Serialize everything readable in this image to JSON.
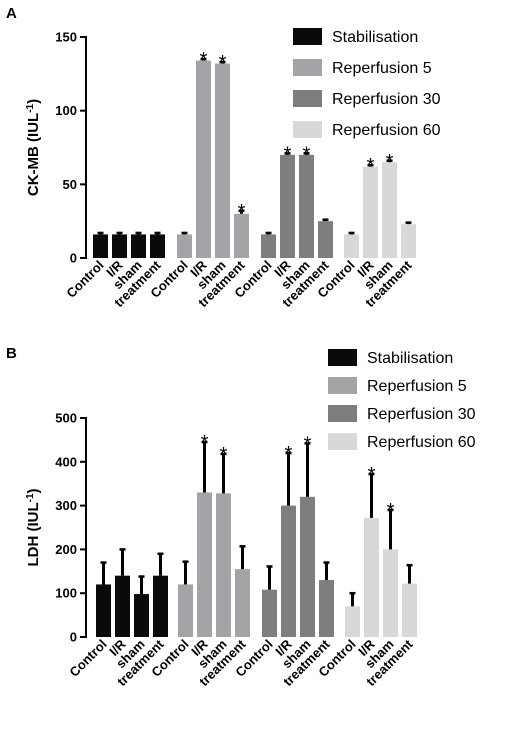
{
  "chart_data": [
    {
      "type": "bar",
      "panel_label": "A",
      "ylabel_main": "CK-MB (IUL",
      "ylabel_sup": "-1",
      "ylabel_end": ")",
      "ylim": [
        0,
        150
      ],
      "yticks": [
        0,
        50,
        100,
        150
      ],
      "categories": [
        "Control",
        "I/R",
        "sham",
        "treatment"
      ],
      "legend_position": "top-right",
      "series": [
        {
          "name": "Stabilisation",
          "color": "#0a0a0a",
          "values": [
            16,
            16,
            16,
            16
          ],
          "errors": [
            1,
            1,
            1,
            1
          ],
          "significant": [
            false,
            false,
            false,
            false
          ]
        },
        {
          "name": "Reperfusion 5",
          "color": "#a4a4a8",
          "values": [
            16,
            134,
            132,
            30
          ],
          "errors": [
            1,
            1,
            1,
            2
          ],
          "significant": [
            false,
            true,
            true,
            true
          ]
        },
        {
          "name": "Reperfusion 30",
          "color": "#7e7e7e",
          "values": [
            16,
            70,
            70,
            25
          ],
          "errors": [
            1,
            1,
            1,
            1
          ],
          "significant": [
            false,
            true,
            true,
            false
          ]
        },
        {
          "name": "Reperfusion 60",
          "color": "#d8d8d8",
          "values": [
            16,
            62,
            65,
            23
          ],
          "errors": [
            1,
            1,
            1,
            1
          ],
          "significant": [
            false,
            true,
            true,
            false
          ]
        }
      ],
      "significance_marker": "*"
    },
    {
      "type": "bar",
      "panel_label": "B",
      "ylabel_main": "LDH (IUL",
      "ylabel_sup": "-1",
      "ylabel_end": ")",
      "ylim": [
        0,
        500
      ],
      "yticks": [
        0,
        100,
        200,
        300,
        400,
        500
      ],
      "categories": [
        "Control",
        "I/R",
        "sham",
        "treatment"
      ],
      "legend_position": "top-right",
      "series": [
        {
          "name": "Stabilisation",
          "color": "#0a0a0a",
          "values": [
            120,
            140,
            98,
            140
          ],
          "errors": [
            50,
            60,
            40,
            50
          ],
          "significant": [
            false,
            false,
            false,
            false
          ]
        },
        {
          "name": "Reperfusion 5",
          "color": "#a4a4a8",
          "values": [
            120,
            330,
            328,
            155
          ],
          "errors": [
            52,
            115,
            90,
            52
          ],
          "significant": [
            false,
            true,
            true,
            false
          ]
        },
        {
          "name": "Reperfusion 30",
          "color": "#7e7e7e",
          "values": [
            108,
            300,
            320,
            130
          ],
          "errors": [
            53,
            120,
            122,
            40
          ],
          "significant": [
            false,
            true,
            true,
            false
          ]
        },
        {
          "name": "Reperfusion 60",
          "color": "#d8d8d8",
          "values": [
            70,
            272,
            200,
            122
          ],
          "errors": [
            30,
            100,
            90,
            42
          ],
          "significant": [
            false,
            true,
            true,
            false
          ]
        }
      ],
      "significance_marker": "*"
    }
  ]
}
